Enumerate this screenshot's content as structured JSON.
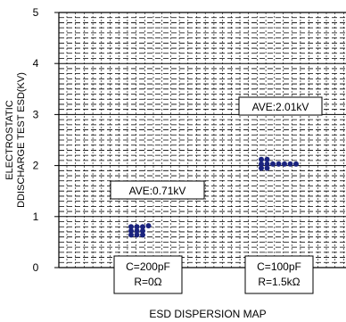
{
  "chart_data": {
    "type": "scatter",
    "xlabel": "ESD DISPERSION MAP",
    "ylabel_lines": [
      "ELECTROSTATIC",
      "DDISCHARGE TEST ESD(KV)"
    ],
    "ylim": [
      0,
      5
    ],
    "yticks": [
      "0",
      "1",
      "2",
      "3",
      "4",
      "5"
    ],
    "grid": true,
    "marker_color": "#1a237e",
    "series": [
      {
        "category_lines": [
          "C=200pF",
          "R=0Ω"
        ],
        "average_label": "AVE:0.71kV",
        "points": [
          {
            "col": 0,
            "y": 0.8
          },
          {
            "col": 1,
            "y": 0.8
          },
          {
            "col": 2,
            "y": 0.8
          },
          {
            "col": 3,
            "y": 0.82
          },
          {
            "col": 0,
            "y": 0.72
          },
          {
            "col": 1,
            "y": 0.72
          },
          {
            "col": 2,
            "y": 0.72
          },
          {
            "col": 0,
            "y": 0.64
          },
          {
            "col": 1,
            "y": 0.64
          },
          {
            "col": 2,
            "y": 0.64
          }
        ]
      },
      {
        "category_lines": [
          "C=100pF",
          "R=1.5kΩ"
        ],
        "average_label": "AVE:2.01kV",
        "points": [
          {
            "col": 0,
            "y": 2.12
          },
          {
            "col": 1,
            "y": 2.12
          },
          {
            "col": 0,
            "y": 2.03
          },
          {
            "col": 1,
            "y": 2.03
          },
          {
            "col": 2,
            "y": 2.03
          },
          {
            "col": 3,
            "y": 2.03
          },
          {
            "col": 4,
            "y": 2.03
          },
          {
            "col": 5,
            "y": 2.03
          },
          {
            "col": 6,
            "y": 2.03
          },
          {
            "col": 0,
            "y": 1.95
          },
          {
            "col": 1,
            "y": 1.95
          }
        ]
      }
    ]
  }
}
